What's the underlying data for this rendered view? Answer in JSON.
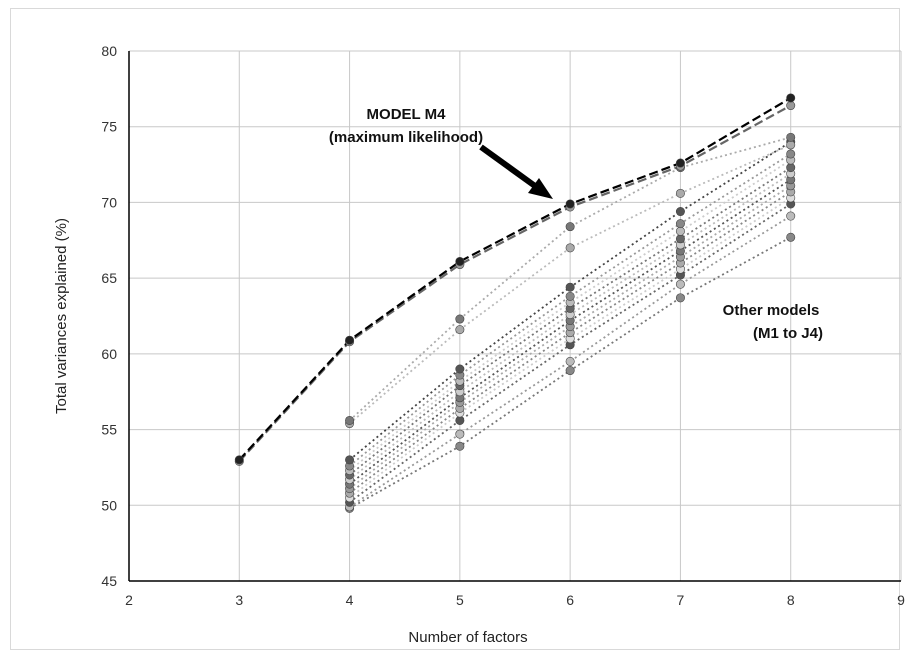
{
  "chart_data": {
    "type": "line",
    "xlabel": "Number of factors",
    "ylabel": "Total variances explained (%)",
    "xlim": [
      2,
      9
    ],
    "ylim": [
      45,
      80
    ],
    "x_ticks": [
      2,
      3,
      4,
      5,
      6,
      7,
      8,
      9
    ],
    "y_ticks": [
      45,
      50,
      55,
      60,
      65,
      70,
      75,
      80
    ],
    "grid": true,
    "annotations": {
      "model_m4_line1": "MODEL M4",
      "model_m4_line2": "(maximum likelihood)",
      "other_line1": "Other models",
      "other_line2": "(M1 to J4)"
    },
    "series": [
      {
        "style": "dashed",
        "color": "#000000",
        "marker": "#222222",
        "x": [
          3,
          4,
          5,
          6,
          7,
          8
        ],
        "y": [
          53.0,
          60.9,
          66.1,
          69.9,
          72.6,
          76.9
        ]
      },
      {
        "style": "dashed",
        "color": "#666666",
        "marker": "#999999",
        "x": [
          3,
          4,
          5,
          6,
          7,
          8
        ],
        "y": [
          52.9,
          60.8,
          65.9,
          69.7,
          72.4,
          76.4
        ]
      },
      {
        "style": "dotted",
        "color": "#aaaaaa",
        "marker": "#777777",
        "x": [
          4,
          5,
          6,
          7,
          8
        ],
        "y": [
          55.6,
          62.3,
          68.4,
          72.3,
          74.3
        ]
      },
      {
        "style": "dotted",
        "color": "#bbbbbb",
        "marker": "#aaaaaa",
        "x": [
          4,
          5,
          6,
          7,
          8
        ],
        "y": [
          55.4,
          61.6,
          67.0,
          70.6,
          73.8
        ]
      },
      {
        "style": "dotted",
        "color": "#444444",
        "marker": "#555555",
        "x": [
          4,
          5,
          6,
          7,
          8
        ],
        "y": [
          53.0,
          59.0,
          64.4,
          69.4,
          74.0
        ]
      },
      {
        "style": "dotted",
        "color": "#999999",
        "marker": "#888888",
        "x": [
          4,
          5,
          6,
          7,
          8
        ],
        "y": [
          52.6,
          58.6,
          63.8,
          68.6,
          73.2
        ]
      },
      {
        "style": "dotted",
        "color": "#cccccc",
        "marker": "#bbbbbb",
        "x": [
          4,
          5,
          6,
          7,
          8
        ],
        "y": [
          52.3,
          58.2,
          63.4,
          68.1,
          72.8
        ]
      },
      {
        "style": "dotted",
        "color": "#777777",
        "marker": "#666666",
        "x": [
          4,
          5,
          6,
          7,
          8
        ],
        "y": [
          52.0,
          57.9,
          63.0,
          67.6,
          72.3
        ]
      },
      {
        "style": "dotted",
        "color": "#bbbbbb",
        "marker": "#cccccc",
        "x": [
          4,
          5,
          6,
          7,
          8
        ],
        "y": [
          51.7,
          57.5,
          62.6,
          67.2,
          71.9
        ]
      },
      {
        "style": "dotted",
        "color": "#555555",
        "marker": "#777777",
        "x": [
          4,
          5,
          6,
          7,
          8
        ],
        "y": [
          51.4,
          57.1,
          62.2,
          66.8,
          71.5
        ]
      },
      {
        "style": "dotted",
        "color": "#aaaaaa",
        "marker": "#999999",
        "x": [
          4,
          5,
          6,
          7,
          8
        ],
        "y": [
          51.1,
          56.8,
          61.8,
          66.4,
          71.1
        ]
      },
      {
        "style": "dotted",
        "color": "#888888",
        "marker": "#aaaaaa",
        "x": [
          4,
          5,
          6,
          7,
          8
        ],
        "y": [
          50.8,
          56.4,
          61.4,
          66.0,
          70.7
        ]
      },
      {
        "style": "dotted",
        "color": "#cccccc",
        "marker": "#dddddd",
        "x": [
          4,
          5,
          6,
          7,
          8
        ],
        "y": [
          50.5,
          56.1,
          61.0,
          65.6,
          70.3
        ]
      },
      {
        "style": "dotted",
        "color": "#666666",
        "marker": "#555555",
        "x": [
          4,
          5,
          6,
          7,
          8
        ],
        "y": [
          50.2,
          55.6,
          60.6,
          65.2,
          69.9
        ]
      },
      {
        "style": "dotted",
        "color": "#999999",
        "marker": "#bbbbbb",
        "x": [
          4,
          5,
          6,
          7,
          8
        ],
        "y": [
          49.9,
          54.7,
          59.5,
          64.6,
          69.1
        ]
      },
      {
        "style": "dotted",
        "color": "#777777",
        "marker": "#888888",
        "x": [
          4,
          5,
          6,
          7,
          8
        ],
        "y": [
          49.8,
          53.9,
          58.9,
          63.7,
          67.7
        ]
      }
    ]
  }
}
